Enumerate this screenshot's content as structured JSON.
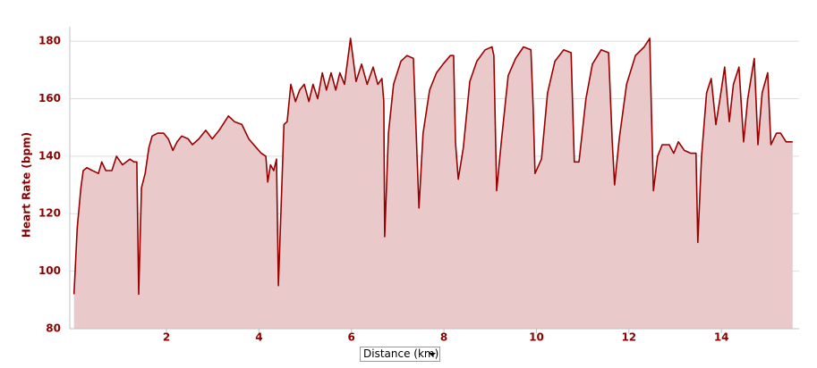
{
  "chart_data": {
    "type": "area",
    "x_label": "Distance (km)",
    "y_label": "Heart Rate (bpm)",
    "xlim": [
      -0.09,
      15.68
    ],
    "ylim": [
      80,
      185
    ],
    "xticks": [
      2,
      4,
      6,
      8,
      10,
      12,
      14
    ],
    "yticks": [
      80,
      100,
      120,
      140,
      160,
      180
    ],
    "grid": true,
    "line_color": "#990000",
    "fill_color": "#e9c9c9",
    "x": [
      0,
      0.07,
      0.15,
      0.2,
      0.28,
      0.4,
      0.53,
      0.6,
      0.69,
      0.82,
      0.92,
      1.05,
      1.21,
      1.3,
      1.36,
      1.4,
      1.46,
      1.54,
      1.62,
      1.69,
      1.81,
      1.94,
      2.04,
      2.14,
      2.23,
      2.33,
      2.47,
      2.56,
      2.7,
      2.85,
      2.99,
      3.14,
      3.34,
      3.47,
      3.63,
      3.78,
      3.94,
      4.05,
      4.15,
      4.19,
      4.25,
      4.32,
      4.38,
      4.42,
      4.48,
      4.54,
      4.61,
      4.69,
      4.79,
      4.88,
      4.98,
      5.08,
      5.17,
      5.27,
      5.37,
      5.46,
      5.56,
      5.66,
      5.75,
      5.85,
      5.98,
      6.1,
      6.22,
      6.34,
      6.47,
      6.57,
      6.66,
      6.7,
      6.72,
      6.8,
      6.91,
      7.07,
      7.2,
      7.34,
      7.4,
      7.46,
      7.55,
      7.69,
      7.84,
      7.98,
      8.14,
      8.21,
      8.25,
      8.31,
      8.42,
      8.56,
      8.71,
      8.89,
      9.04,
      9.08,
      9.14,
      9.24,
      9.39,
      9.55,
      9.72,
      9.88,
      9.93,
      9.97,
      10.11,
      10.24,
      10.4,
      10.59,
      10.75,
      10.82,
      10.92,
      11.07,
      11.21,
      11.4,
      11.56,
      11.64,
      11.69,
      11.79,
      11.95,
      12.14,
      12.33,
      12.45,
      12.49,
      12.53,
      12.62,
      12.72,
      12.87,
      12.97,
      13.07,
      13.2,
      13.34,
      13.45,
      13.49,
      13.57,
      13.68,
      13.78,
      13.88,
      13.97,
      14.07,
      14.17,
      14.26,
      14.38,
      14.48,
      14.57,
      14.71,
      14.79,
      14.88,
      15.0,
      15.07,
      15.19,
      15.28,
      15.4,
      15.54
    ],
    "values": [
      92,
      115,
      129,
      135,
      136,
      135,
      134,
      138,
      135,
      135,
      140,
      137,
      139,
      138,
      138,
      92,
      129,
      134,
      143,
      147,
      148,
      148,
      146,
      142,
      145,
      147,
      146,
      144,
      146,
      149,
      146,
      149,
      154,
      152,
      151,
      146,
      143,
      141,
      140,
      131,
      137,
      135,
      139,
      95,
      123,
      151,
      152,
      165,
      159,
      163,
      165,
      159,
      165,
      160,
      169,
      163,
      169,
      163,
      169,
      165,
      181,
      166,
      172,
      165,
      171,
      165,
      167,
      159,
      112,
      148,
      165,
      173,
      175,
      174,
      148,
      122,
      148,
      163,
      169,
      172,
      175,
      175,
      145,
      132,
      143,
      166,
      173,
      177,
      178,
      175,
      128,
      145,
      168,
      174,
      178,
      177,
      157,
      134,
      139,
      162,
      173,
      177,
      176,
      138,
      138,
      160,
      172,
      177,
      176,
      145,
      130,
      146,
      165,
      175,
      178,
      181,
      154,
      128,
      140,
      144,
      144,
      141,
      145,
      142,
      141,
      141,
      110,
      140,
      162,
      167,
      151,
      160,
      171,
      152,
      165,
      171,
      145,
      160,
      174,
      144,
      162,
      169,
      144,
      148,
      148,
      145,
      145
    ]
  }
}
